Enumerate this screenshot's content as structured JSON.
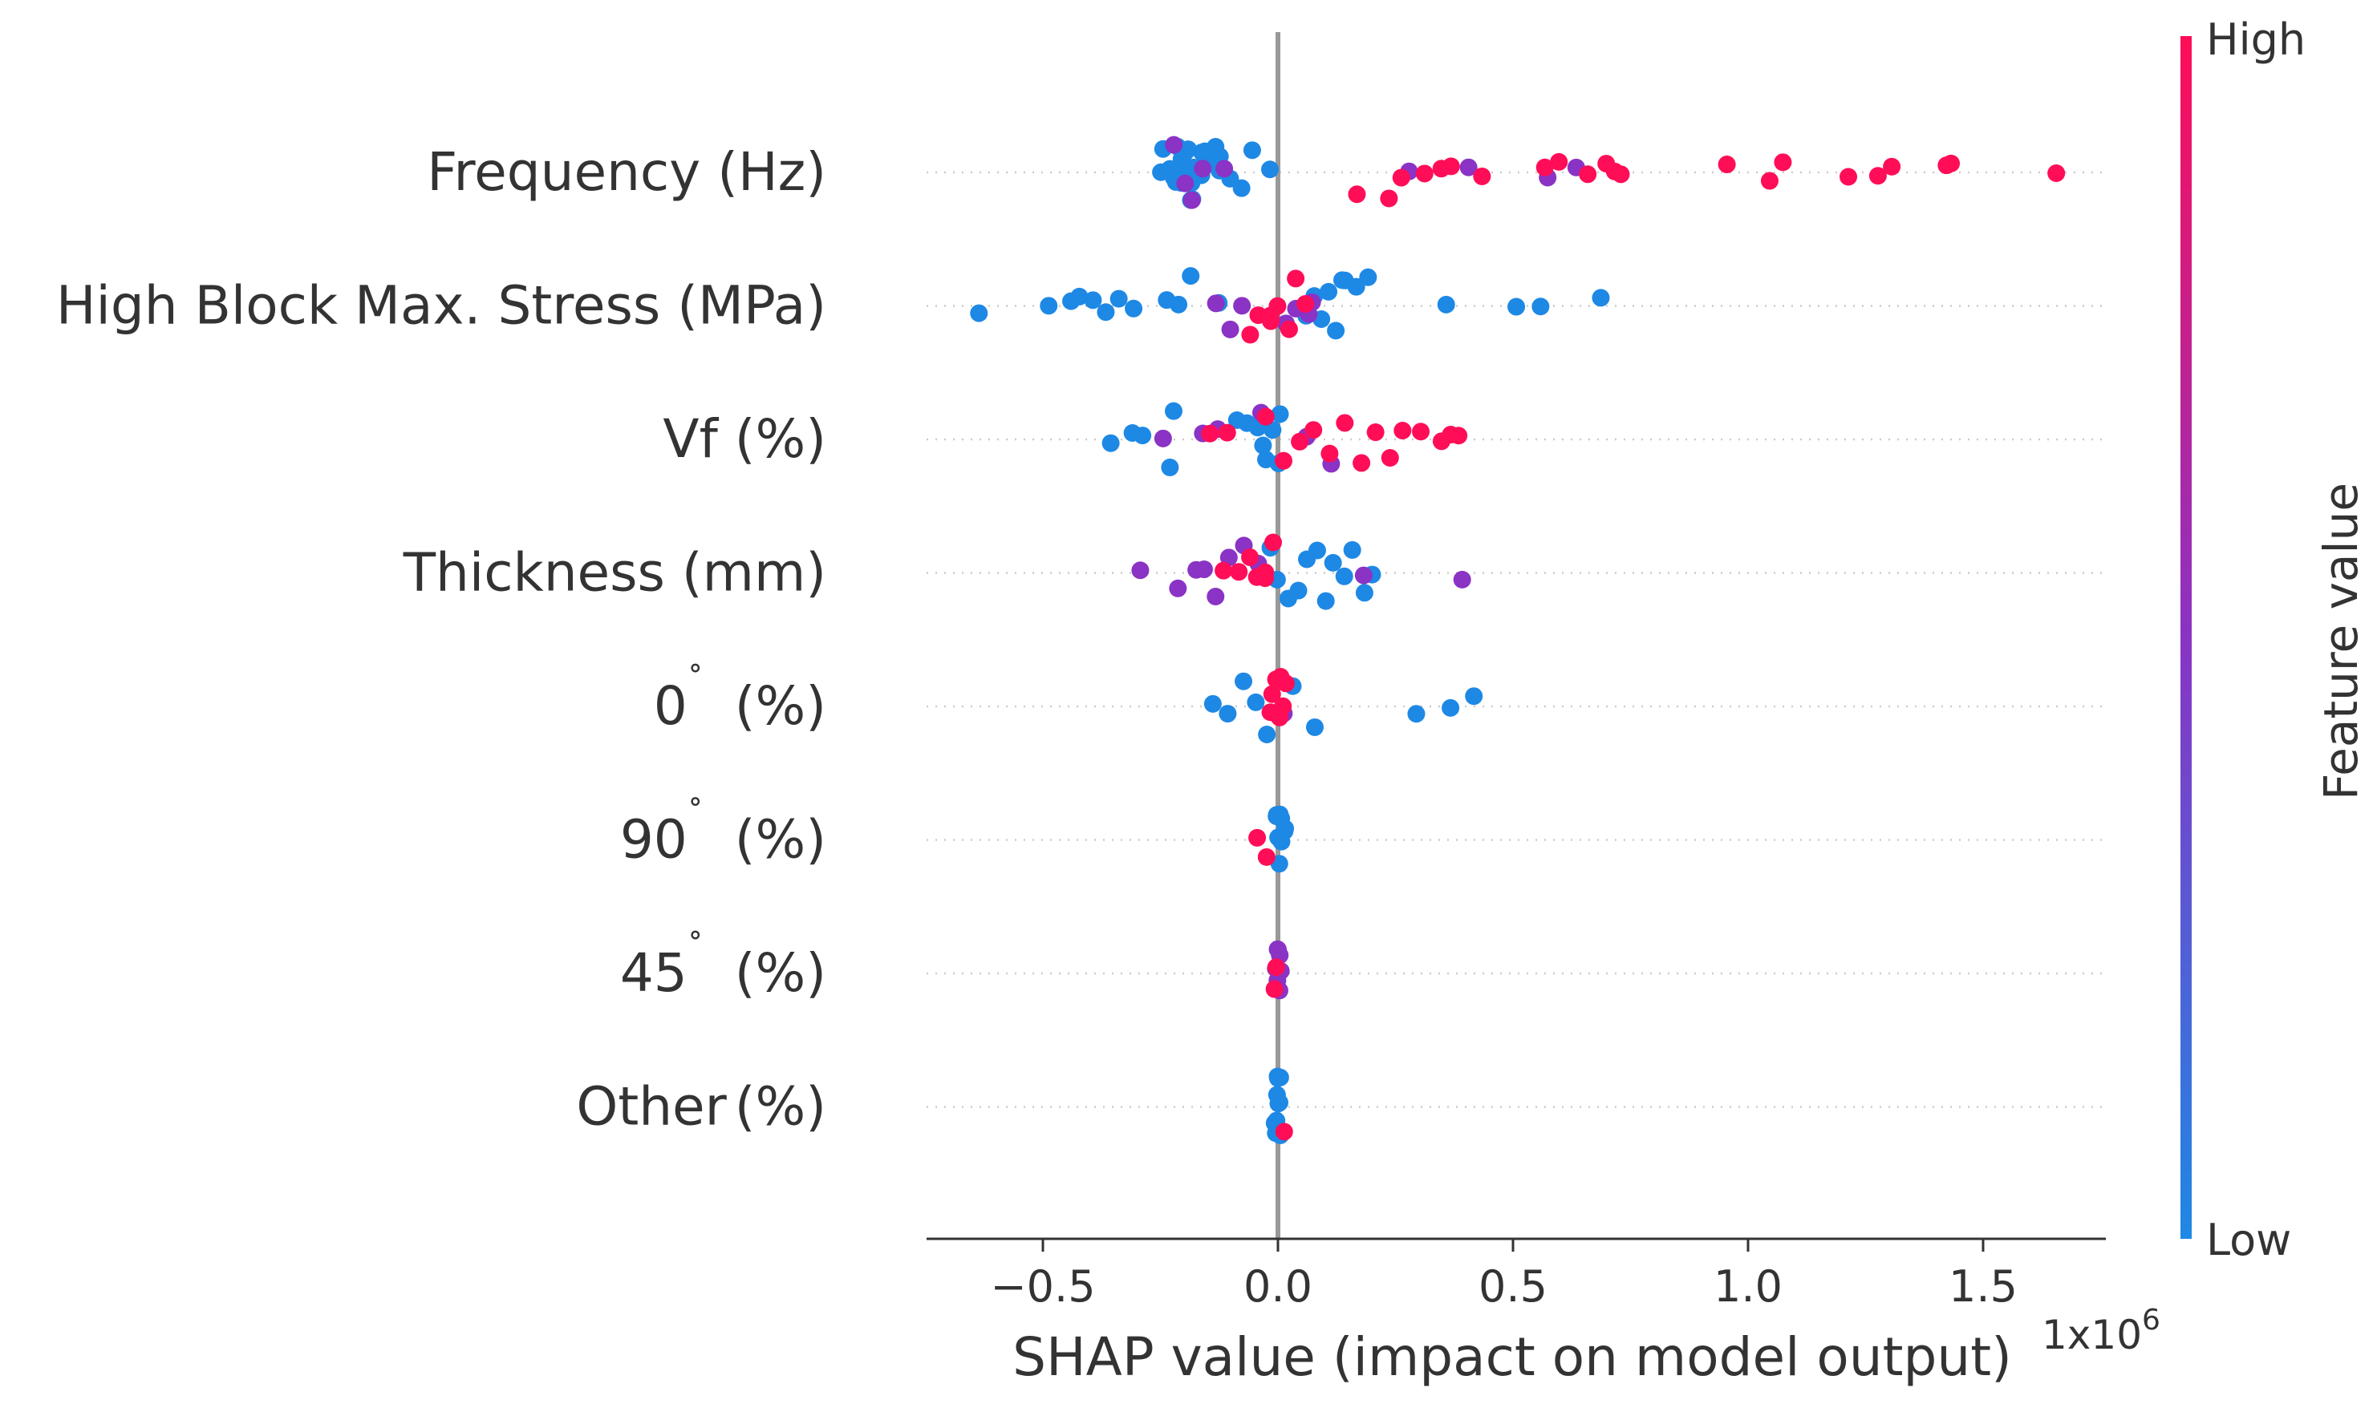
{
  "chart_data": {
    "type": "scatter",
    "subtype": "shap-beeswarm",
    "features": [
      {
        "name": "Frequency (Hz)",
        "label_main": "Frequency (Hz)",
        "label_sup": "",
        "label_tail": "",
        "points_low": [
          -0.25,
          -0.24,
          -0.23,
          -0.22,
          -0.22,
          -0.21,
          -0.21,
          -0.2,
          -0.2,
          -0.2,
          -0.19,
          -0.19,
          -0.19,
          -0.18,
          -0.18,
          -0.18,
          -0.17,
          -0.17,
          -0.16,
          -0.16,
          -0.15,
          -0.14,
          -0.13,
          -0.12,
          -0.1,
          -0.08,
          -0.05,
          -0.01
        ],
        "points_high": [
          0.16,
          0.23,
          0.26,
          0.32,
          0.35,
          0.37,
          0.43,
          0.56,
          0.6,
          0.66,
          0.69,
          0.71,
          0.73,
          0.95,
          1.05,
          1.08,
          1.21,
          1.27,
          1.3,
          1.43,
          1.44,
          1.65
        ],
        "points_mid": [
          -0.22,
          -0.2,
          -0.18,
          -0.16,
          -0.12,
          0.28,
          0.41,
          0.58,
          0.63
        ]
      },
      {
        "name": "High Block Max. Stress (MPa)",
        "label_main": "High Block Max. Stress (MPa)",
        "label_sup": "",
        "label_tail": "",
        "points_low": [
          -0.63,
          -0.48,
          -0.44,
          -0.42,
          -0.39,
          -0.36,
          -0.33,
          -0.3,
          -0.23,
          -0.21,
          -0.19,
          -0.13,
          0.07,
          0.09,
          0.11,
          0.13,
          0.15,
          0.17,
          0.19,
          0.36,
          0.5,
          0.56,
          0.68,
          0.06,
          0.12
        ],
        "points_high": [
          -0.06,
          -0.04,
          -0.02,
          0.0,
          0.02,
          0.04,
          0.05,
          -0.01
        ],
        "points_mid": [
          -0.14,
          -0.1,
          -0.08,
          0.01,
          0.03,
          0.06,
          0.08
        ]
      },
      {
        "name": "Vf (%)",
        "label_main": "Vf (%)",
        "label_sup": "",
        "label_tail": "",
        "points_low": [
          -0.35,
          -0.31,
          -0.28,
          -0.23,
          -0.22,
          -0.09,
          -0.07,
          -0.05,
          -0.03,
          -0.02,
          -0.01,
          0.0,
          0.01
        ],
        "points_high": [
          -0.14,
          -0.1,
          -0.03,
          0.02,
          0.05,
          0.08,
          0.11,
          0.14,
          0.17,
          0.2,
          0.24,
          0.27,
          0.3,
          0.34,
          0.37,
          0.39
        ],
        "points_mid": [
          -0.24,
          -0.16,
          -0.12,
          -0.04,
          0.06,
          0.12
        ]
      },
      {
        "name": "Thickness (mm)",
        "label_main": "Thickness (mm)",
        "label_sup": "",
        "label_tail": "",
        "points_low": [
          0.02,
          0.04,
          0.06,
          0.08,
          0.1,
          0.12,
          0.14,
          0.16,
          0.18,
          0.2,
          0.0,
          -0.01
        ],
        "points_high": [
          -0.11,
          -0.08,
          -0.06,
          -0.04,
          -0.03,
          -0.02,
          -0.01
        ],
        "points_mid": [
          -0.3,
          -0.22,
          -0.18,
          -0.15,
          -0.13,
          -0.1,
          -0.07,
          -0.05,
          0.39,
          0.19
        ]
      },
      {
        "name": "0˚ (%)",
        "label_main": "0",
        "label_sup": "˚",
        "label_tail": " (%)",
        "points_low": [
          -0.13,
          -0.1,
          -0.07,
          -0.05,
          -0.03,
          0.04,
          0.07,
          0.29,
          0.36,
          0.42
        ],
        "points_high": [
          -0.02,
          -0.01,
          0.0,
          0.01,
          0.02,
          0.0,
          0.01
        ],
        "points_mid": [
          0.02,
          0.0
        ]
      },
      {
        "name": "90˚ (%)",
        "label_main": "90",
        "label_sup": "˚",
        "label_tail": " (%)",
        "points_low": [
          0.0,
          0.0,
          0.01,
          0.01,
          0.0,
          0.0,
          0.01,
          0.0,
          0.0,
          0.01
        ],
        "points_high": [
          -0.04,
          -0.02
        ],
        "points_mid": []
      },
      {
        "name": "45˚ (%)",
        "label_main": "45",
        "label_sup": "˚",
        "label_tail": " (%)",
        "points_low": [],
        "points_high": [
          0.0,
          0.0
        ],
        "points_mid": [
          0.0,
          0.0,
          0.0,
          0.0,
          0.0,
          0.0,
          0.0
        ]
      },
      {
        "name": "Other (%)",
        "label_main": "Other",
        "label_sup": "",
        "label_tail": "(%)",
        "points_low": [
          0.0,
          0.0,
          0.0,
          0.0,
          0.0,
          0.0,
          0.0,
          0.0,
          0.0,
          0.0
        ],
        "points_high": [
          0.01
        ],
        "points_mid": []
      }
    ],
    "xlabel": "SHAP value (impact on model output)",
    "x_offset_label": "1x10",
    "x_offset_exponent": "6",
    "xlim": [
      -0.75,
      1.75
    ],
    "xticks": [
      -0.5,
      0.0,
      0.5,
      1.0,
      1.5
    ],
    "xtick_labels": [
      "−0.5",
      "0.0",
      "0.5",
      "1.0",
      "1.5"
    ],
    "colorbar": {
      "title": "Feature value",
      "high_label": "High",
      "low_label": "Low"
    },
    "colors": {
      "low": "#1e88e5",
      "mid": "#8a33c4",
      "high": "#ff0d57",
      "axis": "#999999",
      "zero_line": "#999999"
    }
  }
}
